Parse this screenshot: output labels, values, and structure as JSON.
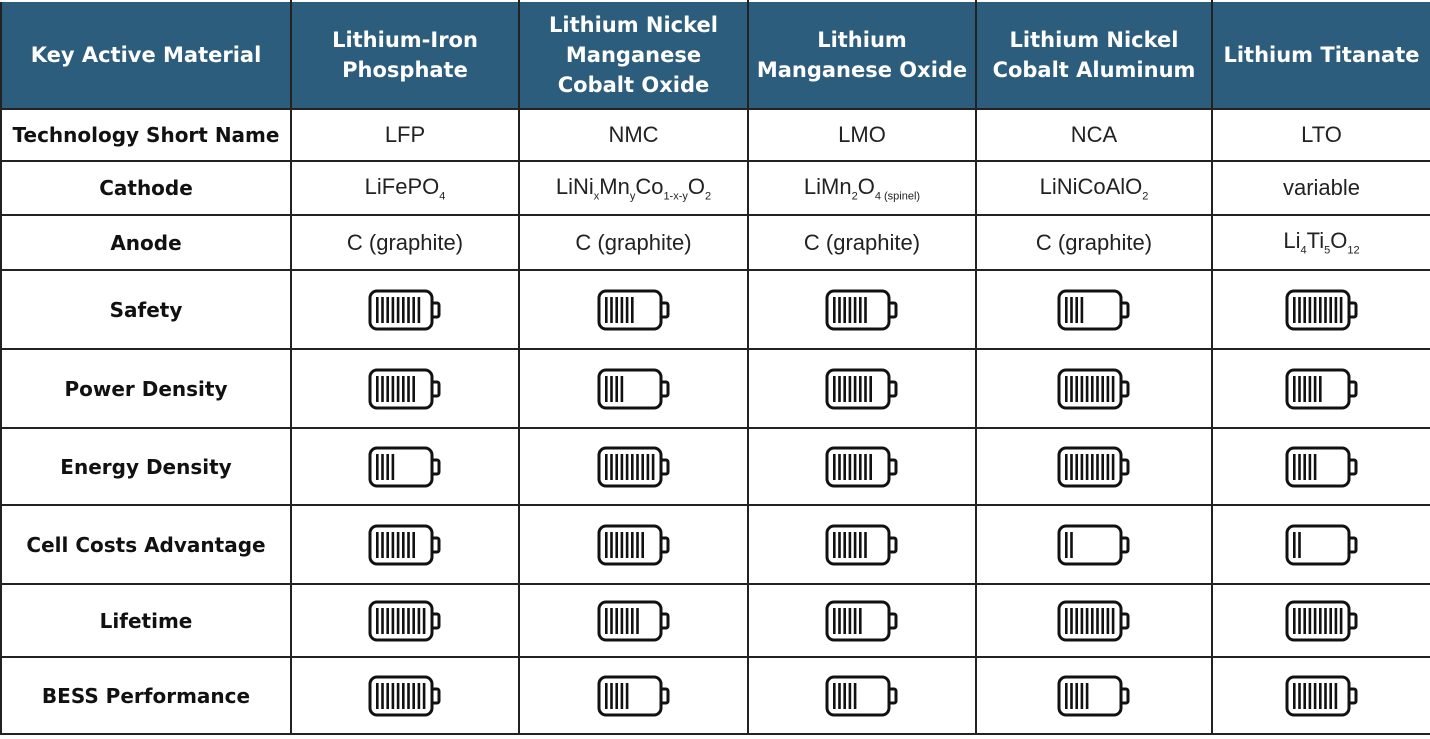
{
  "table": {
    "header": [
      "Key Active Material",
      "Lithium-Iron Phosphate",
      "Lithium Nickel Manganese Cobalt Oxide",
      "Lithium Manganese Oxide",
      "Lithium Nickel Cobalt Aluminum",
      "Lithium Titanate"
    ],
    "rows": [
      {
        "label": "Technology Short Name",
        "cells": [
          [
            {
              "t": "LFP"
            }
          ],
          [
            {
              "t": "NMC"
            }
          ],
          [
            {
              "t": "LMO"
            }
          ],
          [
            {
              "t": "NCA"
            }
          ],
          [
            {
              "t": "LTO"
            }
          ]
        ]
      },
      {
        "label": "Cathode",
        "cells": [
          [
            {
              "t": "LiFePO"
            },
            {
              "sub": "4"
            }
          ],
          [
            {
              "t": "LiNi"
            },
            {
              "sub": "x"
            },
            {
              "t": "Mn"
            },
            {
              "sub": "y"
            },
            {
              "t": "Co"
            },
            {
              "sub": "1-x-y"
            },
            {
              "t": "O"
            },
            {
              "sub": "2"
            }
          ],
          [
            {
              "t": "LiMn"
            },
            {
              "sub": "2"
            },
            {
              "t": "O"
            },
            {
              "sub": "4 (spinel)"
            }
          ],
          [
            {
              "t": "LiNiCoAlO"
            },
            {
              "sub": "2"
            }
          ],
          [
            {
              "t": "variable"
            }
          ]
        ]
      },
      {
        "label": "Anode",
        "cells": [
          [
            {
              "t": "C (graphite)"
            }
          ],
          [
            {
              "t": "C (graphite)"
            }
          ],
          [
            {
              "t": "C (graphite)"
            }
          ],
          [
            {
              "t": "C (graphite)"
            }
          ],
          [
            {
              "t": "Li"
            },
            {
              "sub": "4"
            },
            {
              "t": "Ti"
            },
            {
              "sub": "5"
            },
            {
              "t": "O"
            },
            {
              "sub": "12"
            }
          ]
        ]
      },
      {
        "label": "Safety",
        "ratings": [
          9,
          6,
          7,
          4,
          10
        ]
      },
      {
        "label": "Power Density",
        "ratings": [
          8,
          4,
          8,
          10,
          6
        ]
      },
      {
        "label": "Energy Density",
        "ratings": [
          4,
          10,
          8,
          10,
          5
        ]
      },
      {
        "label": "Cell Costs Advantage",
        "ratings": [
          8,
          8,
          7,
          2,
          2
        ]
      },
      {
        "label": "Lifetime",
        "ratings": [
          10,
          7,
          6,
          10,
          10
        ]
      },
      {
        "label": "BESS Performance",
        "ratings": [
          10,
          5,
          5,
          5,
          9
        ]
      }
    ]
  }
}
